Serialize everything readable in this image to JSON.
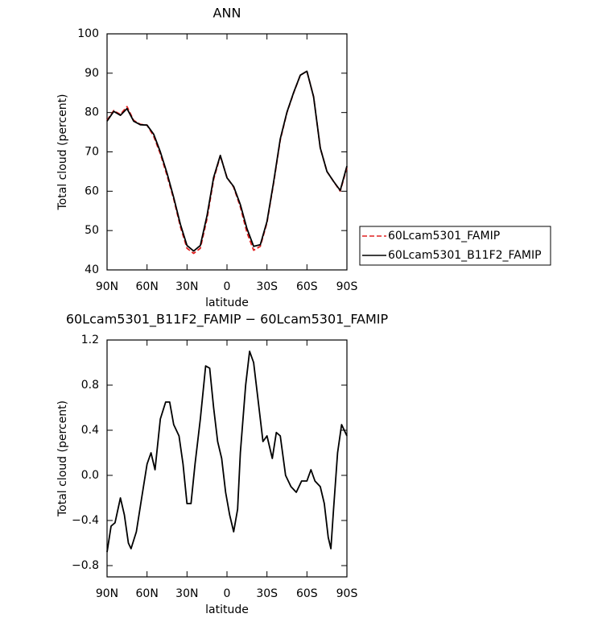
{
  "chart_data": [
    {
      "type": "line",
      "title": "ANN",
      "x_label": "latitude",
      "y_label": "Total cloud (percent)",
      "x": [
        90,
        85,
        80,
        75,
        70,
        65,
        60,
        55,
        50,
        45,
        40,
        35,
        30,
        25,
        20,
        15,
        10,
        5,
        0,
        -5,
        -10,
        -15,
        -20,
        -25,
        -30,
        -35,
        -40,
        -45,
        -50,
        -55,
        -60,
        -65,
        -70,
        -75,
        -80,
        -85,
        -90
      ],
      "series": [
        {
          "name": "60Lcam5301_FAMIP",
          "color": "#e02020",
          "dash": "dashed",
          "values": [
            78,
            80.5,
            79.5,
            81.5,
            78,
            77,
            76.8,
            74,
            69.5,
            64,
            58,
            51,
            45.5,
            44.2,
            45.5,
            53,
            63,
            69,
            63.5,
            61,
            56,
            49.5,
            45,
            46,
            52,
            62,
            73,
            80,
            85,
            89.5,
            90.5,
            84,
            71,
            65,
            62.5,
            60,
            66
          ]
        },
        {
          "name": "60Lcam5301_B11F2_FAMIP",
          "color": "#000000",
          "dash": "solid",
          "values": [
            77.8,
            80.3,
            79.3,
            81,
            77.8,
            76.9,
            76.8,
            74.5,
            70,
            64.6,
            58.4,
            51.6,
            46.2,
            44.8,
            46.2,
            53.8,
            63.5,
            69.1,
            63.4,
            61.2,
            56.6,
            50.5,
            46,
            46.4,
            52.3,
            62.3,
            73.3,
            80.1,
            85.1,
            89.5,
            90.5,
            84,
            71,
            65,
            62.5,
            60.2,
            66.4
          ]
        }
      ],
      "xlim": [
        90,
        -90
      ],
      "xticks": [
        {
          "value": 90,
          "label": "90N"
        },
        {
          "value": 60,
          "label": "60N"
        },
        {
          "value": 30,
          "label": "30N"
        },
        0,
        {
          "value": -30,
          "label": "30S"
        },
        {
          "value": -60,
          "label": "60S"
        },
        {
          "value": -90,
          "label": "90S"
        }
      ],
      "ylim": [
        40,
        100
      ],
      "yticks": [
        40,
        50,
        60,
        70,
        80,
        90,
        100
      ],
      "legend": "right"
    },
    {
      "type": "line",
      "title": "60Lcam5301_B11F2_FAMIP − 60Lcam5301_FAMIP",
      "x_label": "latitude",
      "y_label": "Total cloud (percent)",
      "x": [
        90,
        87,
        84,
        80,
        77,
        74,
        72,
        68,
        64,
        60,
        57,
        54,
        50,
        46,
        43,
        40,
        36,
        33,
        30,
        27,
        24,
        20,
        16,
        13,
        10,
        7,
        4,
        1,
        -2,
        -5,
        -8,
        -10,
        -14,
        -17,
        -20,
        -23,
        -27,
        -30,
        -34,
        -37,
        -40,
        -44,
        -48,
        -52,
        -56,
        -60,
        -63,
        -66,
        -70,
        -73,
        -76,
        -78,
        -80,
        -83,
        -86,
        -88,
        -90
      ],
      "color": "#000000",
      "values": [
        -0.68,
        -0.45,
        -0.42,
        -0.2,
        -0.35,
        -0.6,
        -0.65,
        -0.5,
        -0.2,
        0.1,
        0.2,
        0.05,
        0.5,
        0.65,
        0.65,
        0.45,
        0.35,
        0.1,
        -0.25,
        -0.25,
        0.1,
        0.5,
        0.97,
        0.95,
        0.6,
        0.3,
        0.15,
        -0.15,
        -0.35,
        -0.5,
        -0.3,
        0.2,
        0.8,
        1.1,
        1.0,
        0.7,
        0.3,
        0.35,
        0.15,
        0.38,
        0.35,
        0.0,
        -0.1,
        -0.15,
        -0.05,
        -0.05,
        0.05,
        -0.05,
        -0.1,
        -0.25,
        -0.55,
        -0.65,
        -0.3,
        0.2,
        0.45,
        0.4,
        0.35
      ],
      "xlim": [
        90,
        -90
      ],
      "xticks": [
        {
          "value": 90,
          "label": "90N"
        },
        {
          "value": 60,
          "label": "60N"
        },
        {
          "value": 30,
          "label": "30N"
        },
        0,
        {
          "value": -30,
          "label": "30S"
        },
        {
          "value": -60,
          "label": "60S"
        },
        {
          "value": -90,
          "label": "90S"
        }
      ],
      "ylim": [
        -0.9,
        1.2
      ],
      "yticks": [
        {
          "value": -0.8,
          "label": "−0.8"
        },
        {
          "value": -0.4,
          "label": "−0.4"
        },
        {
          "value": 0,
          "label": "0.0"
        },
        0.4,
        0.8,
        1.2
      ]
    }
  ]
}
